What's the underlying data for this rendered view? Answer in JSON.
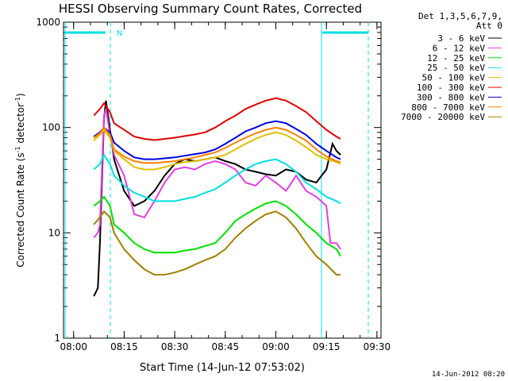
{
  "chart_data": {
    "type": "line",
    "title": "HESSI Observing Summary Count Rates, Corrected",
    "xlabel": "Start Time (14-Jun-12 07:53:02)",
    "ylabel_main": "Corrected Count Rate (s",
    "ylabel_sup1": "-1",
    "ylabel_mid": " detector",
    "ylabel_sup2": "-1",
    "ylabel_end": ")",
    "yscale": "log",
    "ylim": [
      1,
      1000
    ],
    "xlim_minutes": [
      7.95,
      9.52
    ],
    "x_tick_labels": [
      "08:00",
      "08:15",
      "08:30",
      "08:45",
      "09:00",
      "09:15",
      "09:30"
    ],
    "x_tick_values": [
      8.0,
      8.25,
      8.5,
      8.75,
      9.0,
      9.25,
      9.5
    ],
    "y_tick_labels": [
      "1",
      "10",
      "100",
      "1000"
    ],
    "y_tick_values": [
      1,
      10,
      100,
      1000
    ],
    "grid": false,
    "legend_placement": "outside-top-right",
    "legend_header": [
      "Det 1,3,5,6,7,9,",
      "Att 0"
    ],
    "timestamp": "14-Jun-2012 08:20",
    "attenuator_flag_label": "N",
    "flag_bar_color": "#00e0e0",
    "series": [
      {
        "name": "3 - 6 keV",
        "color": "#000000",
        "points": [
          [
            8.1,
            2.5
          ],
          [
            8.12,
            3
          ],
          [
            8.13,
            8
          ],
          [
            8.14,
            30
          ],
          [
            8.15,
            120
          ],
          [
            8.16,
            180
          ],
          [
            8.18,
            95
          ],
          [
            8.2,
            50
          ],
          [
            8.25,
            25
          ],
          [
            8.3,
            18
          ],
          [
            8.35,
            20
          ],
          [
            8.4,
            25
          ],
          [
            8.45,
            35
          ],
          [
            8.5,
            45
          ],
          [
            8.55,
            50
          ],
          [
            8.6,
            48
          ],
          [
            8.65,
            50
          ],
          [
            8.7,
            52
          ],
          [
            8.75,
            48
          ],
          [
            8.8,
            45
          ],
          [
            8.85,
            40
          ],
          [
            8.9,
            38
          ],
          [
            8.95,
            36
          ],
          [
            9.0,
            35
          ],
          [
            9.05,
            40
          ],
          [
            9.1,
            38
          ],
          [
            9.15,
            32
          ],
          [
            9.2,
            30
          ],
          [
            9.25,
            40
          ],
          [
            9.28,
            70
          ],
          [
            9.3,
            60
          ],
          [
            9.32,
            55
          ]
        ]
      },
      {
        "name": "6 - 12 keV",
        "color": "#e040e0",
        "points": [
          [
            8.1,
            9
          ],
          [
            8.12,
            10
          ],
          [
            8.13,
            12
          ],
          [
            8.14,
            40
          ],
          [
            8.15,
            130
          ],
          [
            8.16,
            150
          ],
          [
            8.18,
            85
          ],
          [
            8.2,
            55
          ],
          [
            8.25,
            35
          ],
          [
            8.3,
            15
          ],
          [
            8.35,
            14
          ],
          [
            8.4,
            20
          ],
          [
            8.45,
            30
          ],
          [
            8.5,
            40
          ],
          [
            8.55,
            42
          ],
          [
            8.6,
            40
          ],
          [
            8.65,
            45
          ],
          [
            8.7,
            48
          ],
          [
            8.75,
            45
          ],
          [
            8.8,
            40
          ],
          [
            8.85,
            30
          ],
          [
            8.9,
            28
          ],
          [
            8.95,
            35
          ],
          [
            9.0,
            30
          ],
          [
            9.05,
            25
          ],
          [
            9.1,
            35
          ],
          [
            9.15,
            25
          ],
          [
            9.2,
            22
          ],
          [
            9.25,
            18
          ],
          [
            9.27,
            8
          ],
          [
            9.3,
            8
          ],
          [
            9.32,
            7
          ]
        ]
      },
      {
        "name": "12 - 25 keV",
        "color": "#00e000",
        "points": [
          [
            8.1,
            18
          ],
          [
            8.13,
            20
          ],
          [
            8.15,
            22
          ],
          [
            8.18,
            18
          ],
          [
            8.2,
            12
          ],
          [
            8.25,
            10
          ],
          [
            8.3,
            8
          ],
          [
            8.35,
            7
          ],
          [
            8.4,
            6.5
          ],
          [
            8.45,
            6.5
          ],
          [
            8.5,
            6.5
          ],
          [
            8.55,
            6.8
          ],
          [
            8.6,
            7
          ],
          [
            8.65,
            7.5
          ],
          [
            8.7,
            8
          ],
          [
            8.75,
            10
          ],
          [
            8.8,
            13
          ],
          [
            8.85,
            15
          ],
          [
            8.9,
            17
          ],
          [
            8.95,
            19
          ],
          [
            9.0,
            20
          ],
          [
            9.05,
            18
          ],
          [
            9.1,
            15
          ],
          [
            9.15,
            12
          ],
          [
            9.2,
            10
          ],
          [
            9.25,
            8
          ],
          [
            9.3,
            7
          ],
          [
            9.32,
            6
          ]
        ]
      },
      {
        "name": "25 - 50 keV",
        "color": "#00e0e0",
        "points": [
          [
            8.1,
            40
          ],
          [
            8.13,
            45
          ],
          [
            8.15,
            55
          ],
          [
            8.18,
            45
          ],
          [
            8.2,
            35
          ],
          [
            8.25,
            28
          ],
          [
            8.3,
            24
          ],
          [
            8.35,
            22
          ],
          [
            8.4,
            20
          ],
          [
            8.45,
            20
          ],
          [
            8.5,
            20
          ],
          [
            8.55,
            21
          ],
          [
            8.6,
            22
          ],
          [
            8.65,
            24
          ],
          [
            8.7,
            26
          ],
          [
            8.75,
            30
          ],
          [
            8.8,
            35
          ],
          [
            8.85,
            40
          ],
          [
            8.9,
            45
          ],
          [
            8.95,
            48
          ],
          [
            9.0,
            50
          ],
          [
            9.05,
            45
          ],
          [
            9.1,
            38
          ],
          [
            9.15,
            30
          ],
          [
            9.2,
            26
          ],
          [
            9.25,
            22
          ],
          [
            9.3,
            20
          ],
          [
            9.32,
            19
          ]
        ]
      },
      {
        "name": "50 - 100 keV",
        "color": "#e0c000",
        "points": [
          [
            8.1,
            75
          ],
          [
            8.13,
            85
          ],
          [
            8.15,
            95
          ],
          [
            8.18,
            80
          ],
          [
            8.2,
            60
          ],
          [
            8.25,
            50
          ],
          [
            8.3,
            42
          ],
          [
            8.35,
            40
          ],
          [
            8.4,
            40
          ],
          [
            8.45,
            42
          ],
          [
            8.5,
            45
          ],
          [
            8.55,
            47
          ],
          [
            8.6,
            48
          ],
          [
            8.65,
            50
          ],
          [
            8.7,
            52
          ],
          [
            8.75,
            55
          ],
          [
            8.8,
            62
          ],
          [
            8.85,
            70
          ],
          [
            8.9,
            78
          ],
          [
            8.95,
            85
          ],
          [
            9.0,
            90
          ],
          [
            9.05,
            85
          ],
          [
            9.1,
            75
          ],
          [
            9.15,
            65
          ],
          [
            9.2,
            55
          ],
          [
            9.25,
            50
          ],
          [
            9.3,
            47
          ],
          [
            9.32,
            45
          ]
        ]
      },
      {
        "name": "100 - 300 keV",
        "color": "#e00000",
        "points": [
          [
            8.1,
            130
          ],
          [
            8.13,
            150
          ],
          [
            8.15,
            170
          ],
          [
            8.18,
            140
          ],
          [
            8.2,
            110
          ],
          [
            8.25,
            95
          ],
          [
            8.3,
            82
          ],
          [
            8.35,
            78
          ],
          [
            8.4,
            76
          ],
          [
            8.45,
            78
          ],
          [
            8.5,
            80
          ],
          [
            8.55,
            83
          ],
          [
            8.6,
            86
          ],
          [
            8.65,
            90
          ],
          [
            8.7,
            100
          ],
          [
            8.75,
            115
          ],
          [
            8.8,
            130
          ],
          [
            8.85,
            150
          ],
          [
            8.9,
            165
          ],
          [
            8.95,
            180
          ],
          [
            9.0,
            190
          ],
          [
            9.05,
            180
          ],
          [
            9.1,
            160
          ],
          [
            9.15,
            140
          ],
          [
            9.2,
            115
          ],
          [
            9.25,
            95
          ],
          [
            9.3,
            82
          ],
          [
            9.32,
            78
          ]
        ]
      },
      {
        "name": "300 - 800 keV",
        "color": "#0000e0",
        "points": [
          [
            8.1,
            82
          ],
          [
            8.13,
            90
          ],
          [
            8.15,
            100
          ],
          [
            8.18,
            90
          ],
          [
            8.2,
            72
          ],
          [
            8.25,
            60
          ],
          [
            8.3,
            52
          ],
          [
            8.35,
            50
          ],
          [
            8.4,
            50
          ],
          [
            8.45,
            51
          ],
          [
            8.5,
            52
          ],
          [
            8.55,
            54
          ],
          [
            8.6,
            56
          ],
          [
            8.65,
            58
          ],
          [
            8.7,
            62
          ],
          [
            8.75,
            70
          ],
          [
            8.8,
            80
          ],
          [
            8.85,
            92
          ],
          [
            8.9,
            100
          ],
          [
            8.95,
            110
          ],
          [
            9.0,
            115
          ],
          [
            9.05,
            110
          ],
          [
            9.1,
            97
          ],
          [
            9.15,
            85
          ],
          [
            9.2,
            70
          ],
          [
            9.25,
            60
          ],
          [
            9.3,
            52
          ],
          [
            9.32,
            50
          ]
        ]
      },
      {
        "name": "800 - 7000 keV",
        "color": "#ff8000",
        "points": [
          [
            8.1,
            80
          ],
          [
            8.13,
            88
          ],
          [
            8.15,
            100
          ],
          [
            8.18,
            85
          ],
          [
            8.2,
            62
          ],
          [
            8.25,
            53
          ],
          [
            8.3,
            48
          ],
          [
            8.35,
            46
          ],
          [
            8.4,
            46
          ],
          [
            8.45,
            47
          ],
          [
            8.5,
            48
          ],
          [
            8.55,
            50
          ],
          [
            8.6,
            52
          ],
          [
            8.65,
            55
          ],
          [
            8.7,
            58
          ],
          [
            8.75,
            64
          ],
          [
            8.8,
            72
          ],
          [
            8.85,
            80
          ],
          [
            8.9,
            88
          ],
          [
            8.95,
            95
          ],
          [
            9.0,
            100
          ],
          [
            9.05,
            95
          ],
          [
            9.1,
            85
          ],
          [
            9.15,
            75
          ],
          [
            9.2,
            62
          ],
          [
            9.25,
            53
          ],
          [
            9.3,
            48
          ],
          [
            9.32,
            47
          ]
        ]
      },
      {
        "name": "7000 - 20000 keV",
        "color": "#a08000",
        "points": [
          [
            8.1,
            12
          ],
          [
            8.13,
            14
          ],
          [
            8.15,
            16
          ],
          [
            8.18,
            14
          ],
          [
            8.2,
            10
          ],
          [
            8.25,
            7
          ],
          [
            8.3,
            5.5
          ],
          [
            8.35,
            4.5
          ],
          [
            8.4,
            4
          ],
          [
            8.45,
            4
          ],
          [
            8.5,
            4.2
          ],
          [
            8.55,
            4.5
          ],
          [
            8.6,
            5
          ],
          [
            8.65,
            5.5
          ],
          [
            8.7,
            6
          ],
          [
            8.75,
            7
          ],
          [
            8.8,
            9
          ],
          [
            8.85,
            11
          ],
          [
            8.9,
            13
          ],
          [
            8.95,
            15
          ],
          [
            9.0,
            16
          ],
          [
            9.05,
            14
          ],
          [
            9.1,
            11
          ],
          [
            9.15,
            8
          ],
          [
            9.2,
            6
          ],
          [
            9.25,
            5
          ],
          [
            9.3,
            4
          ],
          [
            9.32,
            4
          ]
        ]
      }
    ]
  }
}
